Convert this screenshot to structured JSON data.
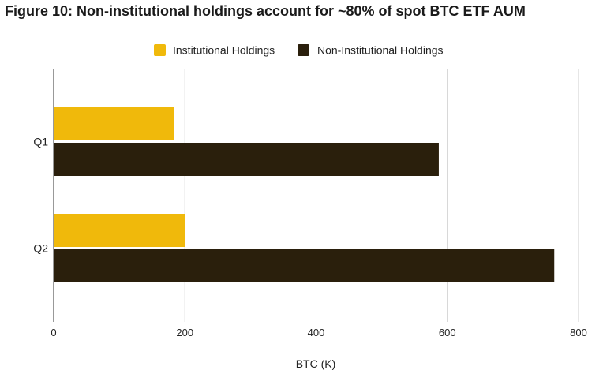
{
  "chart_data": {
    "type": "bar",
    "orientation": "horizontal",
    "title": "Figure 10: Non-institutional holdings account for ~80% of spot BTC ETF AUM",
    "categories": [
      "Q1",
      "Q2"
    ],
    "series": [
      {
        "name": "Institutional Holdings",
        "values": [
          184,
          200
        ],
        "color": "#F0B90B"
      },
      {
        "name": "Non-Institutional Holdings",
        "values": [
          587,
          763
        ],
        "color": "#2A1F0C"
      }
    ],
    "xlabel": "BTC (K)",
    "ylabel": "",
    "xlim": [
      0,
      800
    ],
    "xticks": [
      "0",
      "200",
      "400",
      "600",
      "800"
    ],
    "grid": true,
    "legend_position": "top-center"
  }
}
